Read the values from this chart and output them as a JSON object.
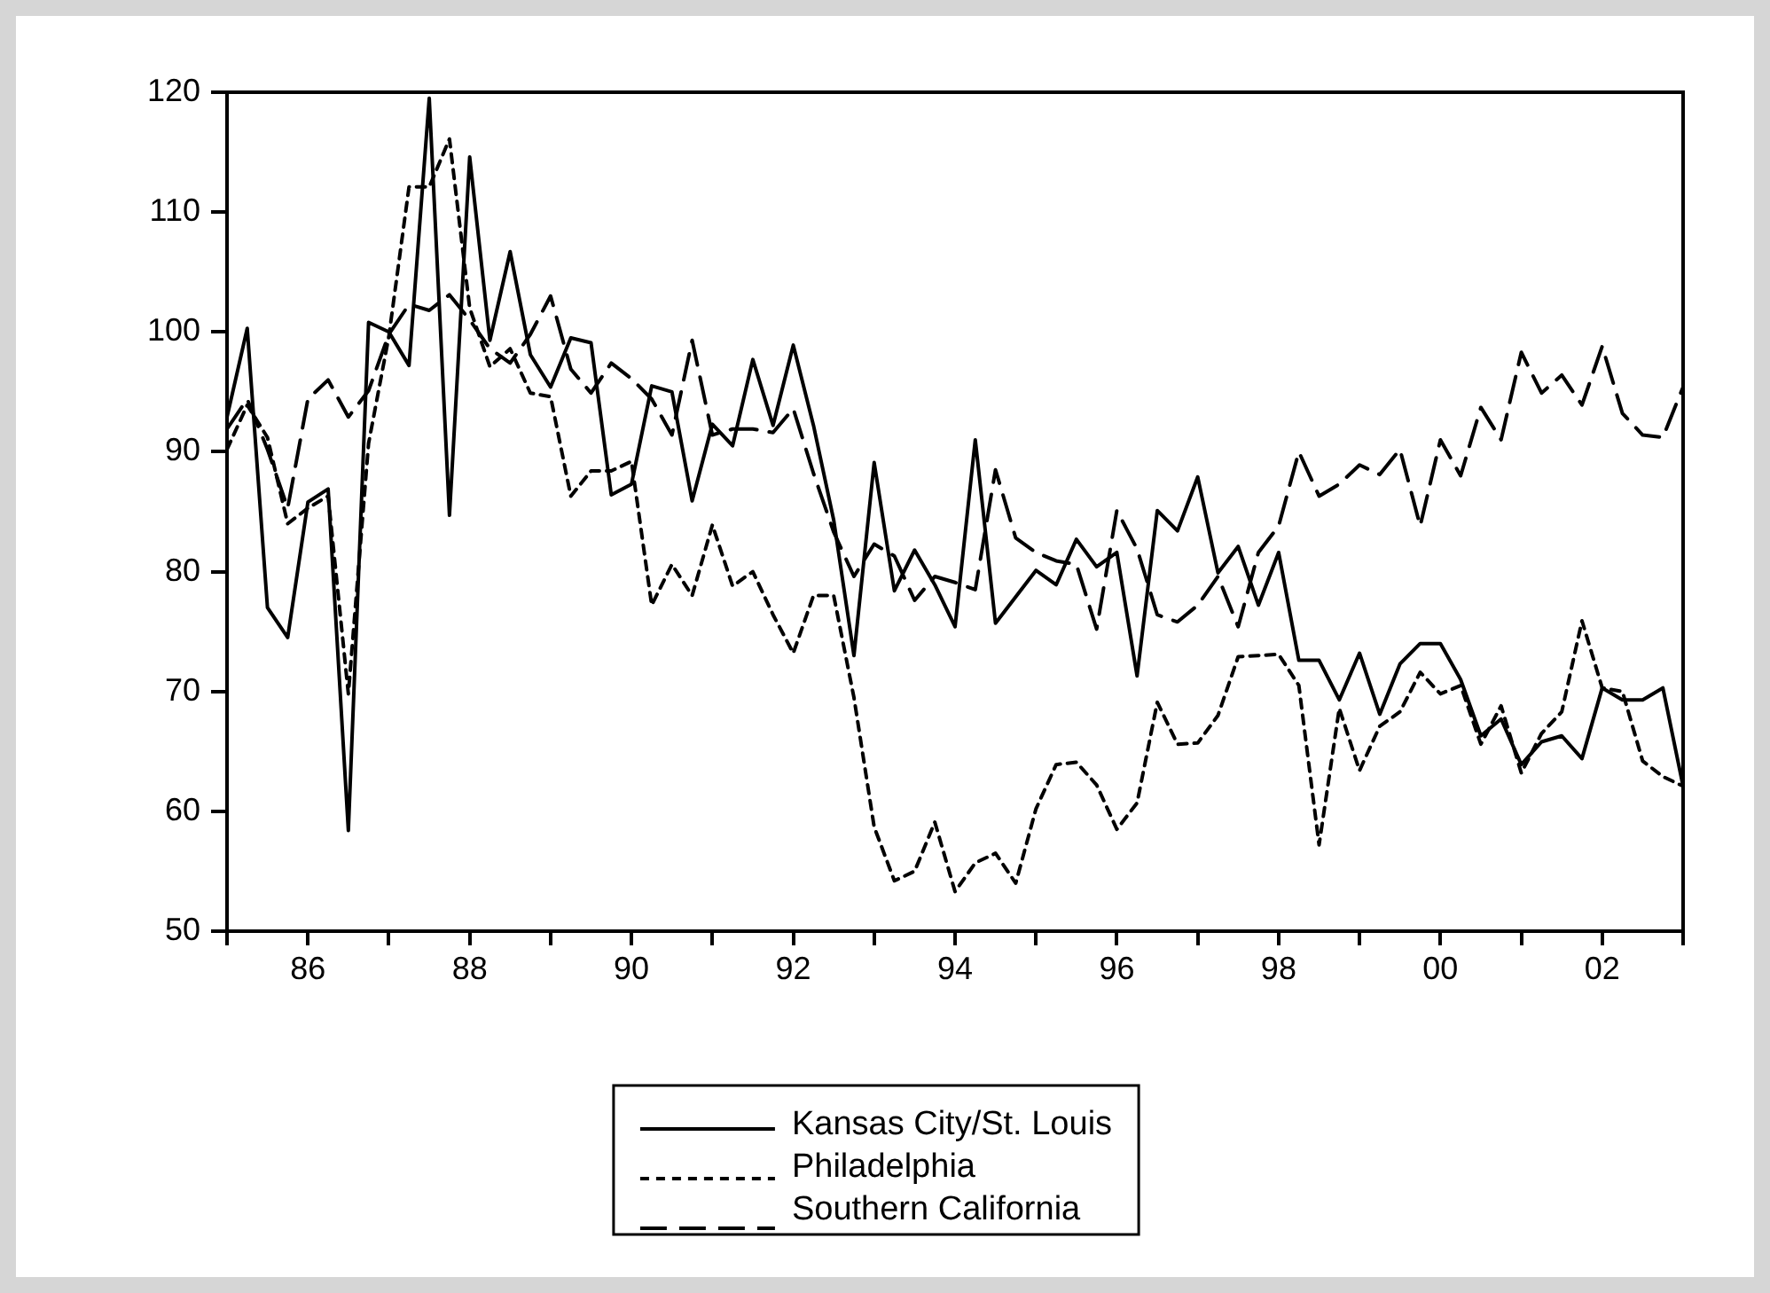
{
  "chart_data": {
    "type": "line",
    "x": [
      1985,
      1985.25,
      1985.5,
      1985.75,
      1986,
      1986.25,
      1986.5,
      1986.75,
      1987,
      1987.25,
      1987.5,
      1987.75,
      1988,
      1988.25,
      1988.5,
      1988.75,
      1989,
      1989.25,
      1989.5,
      1989.75,
      1990,
      1990.25,
      1990.5,
      1990.75,
      1991,
      1991.25,
      1991.5,
      1991.75,
      1992,
      1992.25,
      1992.5,
      1992.75,
      1993,
      1993.25,
      1993.5,
      1993.75,
      1994,
      1994.25,
      1994.5,
      1994.75,
      1995,
      1995.25,
      1995.5,
      1995.75,
      1996,
      1996.25,
      1996.5,
      1996.75,
      1997,
      1997.25,
      1997.5,
      1997.75,
      1998,
      1998.25,
      1998.5,
      1998.75,
      1999,
      1999.25,
      1999.5,
      1999.75,
      2000,
      2000.25,
      2000.5,
      2000.75,
      2001,
      2001.25,
      2001.5,
      2001.75,
      2002,
      2002.25,
      2002.5,
      2002.75,
      2003
    ],
    "series": [
      {
        "name": "Kansas City/St. Louis",
        "color": "#000000",
        "line_style": "solid",
        "values": [
          92.9,
          100.3,
          77,
          74.5,
          85.8,
          86.9,
          58.4,
          100.8,
          100,
          97.2,
          119.5,
          84.7,
          114.6,
          99.3,
          106.7,
          98.1,
          95.4,
          99.5,
          99.1,
          86.4,
          87.3,
          95.5,
          95,
          85.9,
          92.3,
          90.5,
          97.7,
          92.2,
          98.9,
          92.2,
          84.3,
          73,
          89.1,
          78.4,
          81.8,
          78.9,
          75.4,
          91,
          75.7,
          77.9,
          80.1,
          78.9,
          82.7,
          80.4,
          81.6,
          71.3,
          85.1,
          83.4,
          87.9,
          79.9,
          82.1,
          77.2,
          81.6,
          72.6,
          72.6,
          69.3,
          73.2,
          68.1,
          72.3,
          74,
          74,
          71,
          66.3,
          67.7,
          63.9,
          65.8,
          66.3,
          64.4,
          70.3,
          69.3,
          69.3,
          70.3,
          62.1
        ]
      },
      {
        "name": "Philadelphia",
        "color": "#000000",
        "line_style": "dotted",
        "values": [
          90.2,
          93.9,
          91.2,
          84,
          85.3,
          86.3,
          69.8,
          90.7,
          99.6,
          112.1,
          112.1,
          116.1,
          102,
          97.1,
          98.6,
          94.9,
          94.6,
          86.3,
          88.4,
          88.4,
          89.2,
          77.2,
          80.6,
          78,
          83.9,
          78.8,
          80,
          76.4,
          73.2,
          78,
          78,
          69.5,
          58.7,
          54.2,
          55,
          59.1,
          53.3,
          55.7,
          56.5,
          54,
          60.2,
          63.9,
          64.1,
          62.2,
          58.5,
          60.7,
          69.1,
          65.6,
          65.7,
          68,
          72.9,
          73,
          73.1,
          70.5,
          57.2,
          68.6,
          63.4,
          67.1,
          68.3,
          71.6,
          69.8,
          70.5,
          65.6,
          68.8,
          63.2,
          66.5,
          68.3,
          75.9,
          70.3,
          70,
          64.2,
          62.9,
          62.1
        ]
      },
      {
        "name": "Southern California",
        "color": "#000000",
        "line_style": "dashed",
        "values": [
          91.9,
          94.4,
          90.2,
          85.3,
          94.4,
          96,
          92.9,
          95.1,
          99.8,
          102.3,
          101.8,
          103.1,
          101,
          98.6,
          97.4,
          99.8,
          103,
          96.9,
          94.9,
          97.4,
          96.1,
          94.4,
          91.4,
          99.3,
          91.4,
          91.9,
          91.9,
          91.6,
          93.6,
          88.2,
          83.3,
          79.6,
          82.3,
          81.3,
          77.6,
          79.6,
          79.1,
          78.5,
          88.5,
          82.8,
          81.6,
          80.9,
          80.6,
          75.2,
          85.1,
          81.9,
          76.4,
          75.8,
          77.2,
          79.6,
          75.4,
          81.6,
          83.8,
          90,
          86.3,
          87.3,
          88.9,
          88.1,
          90.2,
          83.8,
          91,
          88,
          93.7,
          91,
          98.3,
          94.9,
          96.4,
          93.9,
          98.8,
          93.2,
          91.4,
          91.2,
          95.4
        ]
      }
    ],
    "xlim": [
      1985,
      2003
    ],
    "xticks": [
      {
        "value": 1985,
        "label": null
      },
      {
        "value": 1986,
        "label": "86"
      },
      {
        "value": 1987,
        "label": null
      },
      {
        "value": 1988,
        "label": "88"
      },
      {
        "value": 1989,
        "label": null
      },
      {
        "value": 1990,
        "label": "90"
      },
      {
        "value": 1991,
        "label": null
      },
      {
        "value": 1992,
        "label": "92"
      },
      {
        "value": 1993,
        "label": null
      },
      {
        "value": 1994,
        "label": "94"
      },
      {
        "value": 1995,
        "label": null
      },
      {
        "value": 1996,
        "label": "96"
      },
      {
        "value": 1997,
        "label": null
      },
      {
        "value": 1998,
        "label": "98"
      },
      {
        "value": 1999,
        "label": null
      },
      {
        "value": 2000,
        "label": "00"
      },
      {
        "value": 2001,
        "label": null
      },
      {
        "value": 2002,
        "label": "02"
      },
      {
        "value": 2003,
        "label": null
      }
    ],
    "ylim": [
      50,
      120
    ],
    "yticks": [
      50,
      60,
      70,
      80,
      90,
      100,
      110,
      120
    ],
    "grid": false,
    "legend": "bottom",
    "marker": "none"
  }
}
